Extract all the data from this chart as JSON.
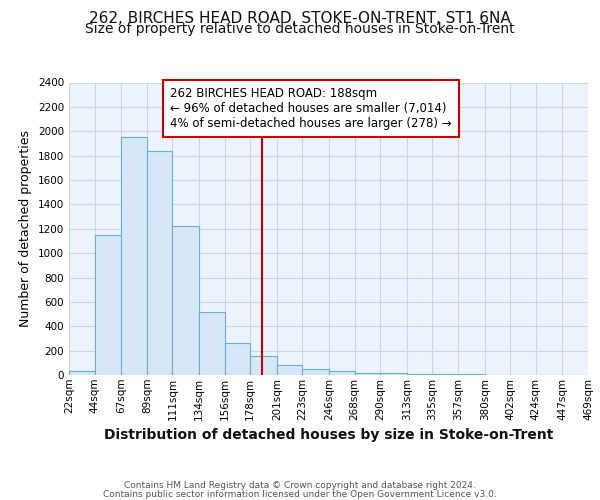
{
  "title1": "262, BIRCHES HEAD ROAD, STOKE-ON-TRENT, ST1 6NA",
  "title2": "Size of property relative to detached houses in Stoke-on-Trent",
  "xlabel": "Distribution of detached houses by size in Stoke-on-Trent",
  "ylabel": "Number of detached properties",
  "bin_edges": [
    22,
    44,
    67,
    89,
    111,
    134,
    156,
    178,
    201,
    223,
    246,
    268,
    290,
    313,
    335,
    357,
    380,
    402,
    424,
    447,
    469
  ],
  "bar_heights": [
    30,
    1150,
    1950,
    1840,
    1220,
    520,
    265,
    155,
    80,
    50,
    30,
    20,
    15,
    12,
    8,
    5,
    3,
    2,
    2,
    2
  ],
  "bar_color": "#d6e8f7",
  "bar_edge_color": "#6aaed6",
  "vline_x": 188,
  "vline_color": "#cc0000",
  "annotation_line1": "262 BIRCHES HEAD ROAD: 188sqm",
  "annotation_line2": "← 96% of detached houses are smaller (7,014)",
  "annotation_line3": "4% of semi-detached houses are larger (278) →",
  "annotation_box_facecolor": "#ffffff",
  "annotation_box_edgecolor": "#cc0000",
  "ylim": [
    0,
    2400
  ],
  "yticks": [
    0,
    200,
    400,
    600,
    800,
    1000,
    1200,
    1400,
    1600,
    1800,
    2000,
    2200,
    2400
  ],
  "x_tick_labels": [
    "22sqm",
    "44sqm",
    "67sqm",
    "89sqm",
    "111sqm",
    "134sqm",
    "156sqm",
    "178sqm",
    "201sqm",
    "223sqm",
    "246sqm",
    "268sqm",
    "290sqm",
    "313sqm",
    "335sqm",
    "357sqm",
    "380sqm",
    "402sqm",
    "424sqm",
    "447sqm",
    "469sqm"
  ],
  "footer1": "Contains HM Land Registry data © Crown copyright and database right 2024.",
  "footer2": "Contains public sector information licensed under the Open Government Licence v3.0.",
  "bg_color": "#edf3fb",
  "grid_color": "#c5d5ea",
  "title1_fontsize": 11,
  "title2_fontsize": 10,
  "tick_fontsize": 7.5,
  "ylabel_fontsize": 9,
  "xlabel_fontsize": 10,
  "footer_fontsize": 6.5,
  "ann_fontsize": 8.5
}
